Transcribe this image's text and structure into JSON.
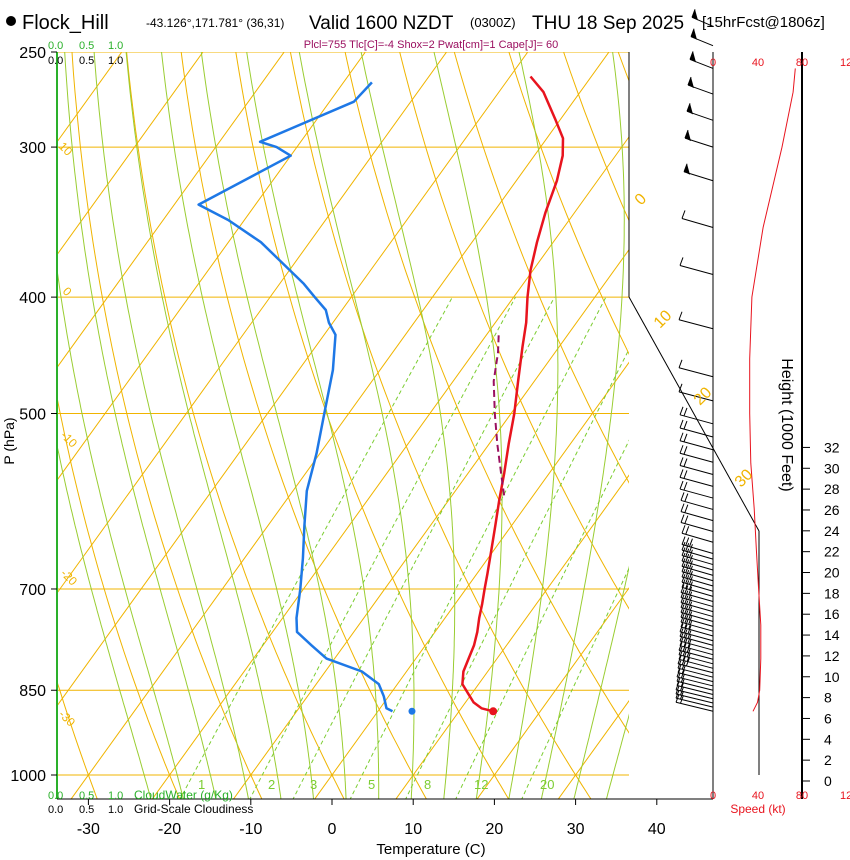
{
  "header": {
    "station": "Flock_Hill",
    "coords": "-43.126°,171.781° (36,31)",
    "valid": "Valid 1600 NZDT",
    "utc": "(0300Z)",
    "date": "THU 18 Sep 2025",
    "forecast": "[15hrFcst@1806z]",
    "parcel_info": "Plcl=755 Tlc[C]=-4 Shox=2 Pwat[cm]=1 Cape[J]= 60"
  },
  "colors": {
    "temperature": "#e8141e",
    "dewpoint": "#1e78e6",
    "parcel": "#9b1060",
    "isotherm": "#f0b400",
    "dry_adiabat": "#f0b400",
    "moist_adiabat": "#9acd32",
    "mixing_ratio": "#7ccd32",
    "cloud": "#2ab02a",
    "speed": "#e8141e"
  },
  "chart_data": {
    "type": "skew-t",
    "xlabel": "Temperature (C)",
    "ylabel": "P (hPa)",
    "right_label": "Height (1000 Feet)",
    "x_ticks": [
      -30,
      -20,
      -10,
      0,
      10,
      20,
      30,
      40
    ],
    "pressure_ticks": [
      250,
      300,
      400,
      500,
      700,
      850,
      1000
    ],
    "height_ticks": [
      0,
      2,
      4,
      6,
      8,
      10,
      12,
      14,
      16,
      18,
      20,
      22,
      24,
      26,
      28,
      30,
      32
    ],
    "isotherm_labels": [
      "0",
      "10",
      "20",
      "30",
      "-10",
      "-20",
      "-30",
      "10"
    ],
    "moist_labels": [
      "1",
      "2",
      "3",
      "5",
      "8",
      "12",
      "20"
    ],
    "top_scale_green": [
      "0.0",
      "0.5",
      "1.0"
    ],
    "top_scale_black": [
      "0.0",
      "0.5",
      "1.0"
    ],
    "bottom_scale_green": [
      "0.0",
      "0.5",
      "1.0"
    ],
    "bottom_scale_black": [
      "0.0",
      "0.5",
      "1.0"
    ],
    "cloudwater_label": "CloudWater (g/Kg)",
    "cloudiness_label": "Grid-Scale Cloudiness",
    "speed_ticks": [
      "0",
      "40",
      "80",
      "12"
    ],
    "speed_label": "Speed (kt)",
    "temperature": [
      [
        885,
        14.2
      ],
      [
        880,
        12.5
      ],
      [
        870,
        11.0
      ],
      [
        855,
        9.5
      ],
      [
        840,
        8.0
      ],
      [
        820,
        7.0
      ],
      [
        800,
        6.5
      ],
      [
        780,
        6.0
      ],
      [
        760,
        5.2
      ],
      [
        740,
        4.2
      ],
      [
        720,
        3.3
      ],
      [
        700,
        2.3
      ],
      [
        680,
        1.3
      ],
      [
        650,
        -0.3
      ],
      [
        620,
        -2.0
      ],
      [
        590,
        -3.8
      ],
      [
        560,
        -5.6
      ],
      [
        530,
        -7.6
      ],
      [
        500,
        -9.6
      ],
      [
        470,
        -12.0
      ],
      [
        440,
        -14.5
      ],
      [
        420,
        -16.2
      ],
      [
        400,
        -18.3
      ],
      [
        380,
        -20.3
      ],
      [
        360,
        -22.0
      ],
      [
        340,
        -23.6
      ],
      [
        320,
        -25.0
      ],
      [
        305,
        -26.5
      ],
      [
        295,
        -28.0
      ],
      [
        285,
        -30.5
      ],
      [
        270,
        -34.5
      ],
      [
        262,
        -37.5
      ]
    ],
    "dewpoint": [
      [
        885,
        1.8
      ],
      [
        880,
        0.8
      ],
      [
        860,
        -0.6
      ],
      [
        840,
        -2.3
      ],
      [
        820,
        -5.5
      ],
      [
        800,
        -11.0
      ],
      [
        780,
        -14.0
      ],
      [
        760,
        -17.0
      ],
      [
        740,
        -18.3
      ],
      [
        700,
        -20.4
      ],
      [
        660,
        -22.8
      ],
      [
        620,
        -25.5
      ],
      [
        580,
        -28.3
      ],
      [
        540,
        -30.4
      ],
      [
        500,
        -33.0
      ],
      [
        460,
        -35.8
      ],
      [
        430,
        -38.6
      ],
      [
        420,
        -40.5
      ],
      [
        410,
        -42.0
      ],
      [
        400,
        -44.5
      ],
      [
        390,
        -47.0
      ],
      [
        360,
        -56.0
      ],
      [
        345,
        -62.0
      ],
      [
        335,
        -67.0
      ],
      [
        305,
        -60.0
      ],
      [
        300,
        -62.5
      ],
      [
        297,
        -65.0
      ],
      [
        275,
        -57.0
      ],
      [
        265,
        -56.5
      ]
    ],
    "parcel": [
      [
        585,
        -3.6
      ],
      [
        560,
        -6.0
      ],
      [
        530,
        -9.0
      ],
      [
        500,
        -12.0
      ],
      [
        470,
        -15.0
      ],
      [
        445,
        -17.0
      ],
      [
        430,
        -18.5
      ]
    ],
    "speed_profile": [
      [
        885,
        36
      ],
      [
        870,
        40
      ],
      [
        850,
        42
      ],
      [
        800,
        43
      ],
      [
        750,
        43
      ],
      [
        700,
        41
      ],
      [
        650,
        39
      ],
      [
        600,
        37
      ],
      [
        550,
        34
      ],
      [
        500,
        33
      ],
      [
        450,
        33
      ],
      [
        400,
        35
      ],
      [
        350,
        45
      ],
      [
        300,
        62
      ],
      [
        270,
        72
      ],
      [
        258,
        74
      ]
    ],
    "barbs": [
      [
        885,
        6,
        11
      ],
      [
        878,
        6,
        11
      ],
      [
        871,
        6,
        11
      ],
      [
        864,
        6,
        11
      ],
      [
        857,
        7,
        11
      ],
      [
        850,
        7,
        12
      ],
      [
        843,
        7,
        12
      ],
      [
        836,
        8,
        12
      ],
      [
        829,
        8,
        12
      ],
      [
        822,
        8,
        13
      ],
      [
        815,
        9,
        13
      ],
      [
        808,
        9,
        13
      ],
      [
        801,
        9,
        13
      ],
      [
        794,
        10,
        13
      ],
      [
        787,
        10,
        14
      ],
      [
        780,
        10,
        14
      ],
      [
        773,
        10,
        14
      ],
      [
        766,
        11,
        14
      ],
      [
        759,
        11,
        14
      ],
      [
        752,
        11,
        15
      ],
      [
        745,
        11,
        15
      ],
      [
        738,
        11,
        15
      ],
      [
        731,
        11,
        15
      ],
      [
        724,
        11,
        15
      ],
      [
        717,
        11,
        15
      ],
      [
        710,
        12,
        15
      ],
      [
        703,
        12,
        15
      ],
      [
        696,
        12,
        14
      ],
      [
        689,
        12,
        14
      ],
      [
        682,
        12,
        14
      ],
      [
        675,
        12,
        14
      ],
      [
        668,
        12,
        13
      ],
      [
        661,
        12,
        13
      ],
      [
        654,
        12,
        13
      ],
      [
        640,
        12,
        12
      ],
      [
        627,
        11,
        12
      ],
      [
        614,
        11,
        12
      ],
      [
        601,
        11,
        12
      ],
      [
        588,
        10,
        12
      ],
      [
        575,
        10,
        11
      ],
      [
        562,
        10,
        11
      ],
      [
        549,
        10,
        10
      ],
      [
        536,
        10,
        10
      ],
      [
        523,
        10,
        9
      ],
      [
        510,
        10,
        8
      ],
      [
        488,
        9,
        7
      ],
      [
        466,
        9,
        6
      ],
      [
        425,
        9,
        4
      ],
      [
        383,
        10,
        3
      ],
      [
        350,
        12,
        3
      ],
      [
        320,
        14,
        2
      ],
      [
        300,
        15,
        2
      ],
      [
        285,
        17,
        2
      ],
      [
        271,
        18,
        2
      ],
      [
        258,
        20,
        2
      ],
      [
        247,
        21,
        2
      ],
      [
        238,
        22,
        2
      ]
    ],
    "cloud_marks": [
      [
        885,
        4.2
      ]
    ]
  }
}
